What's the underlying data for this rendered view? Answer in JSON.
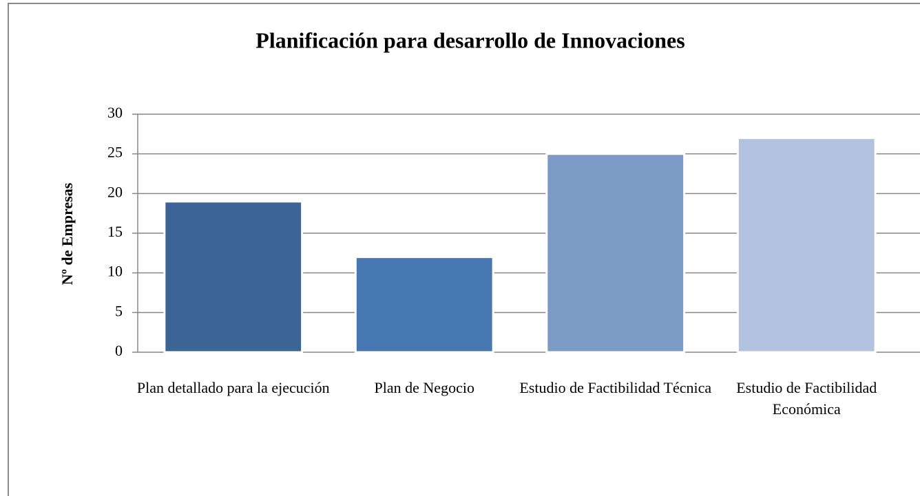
{
  "chart_data": {
    "type": "bar",
    "title": "Planificación para desarrollo de Innovaciones",
    "y_label": "Nº de Empresas",
    "categories": [
      "Plan detallado para la ejecución",
      "Plan de Negocio",
      "Estudio de Factibilidad Técnica",
      "Estudio de Factibilidad Económica"
    ],
    "values": [
      19,
      12,
      25,
      27
    ],
    "colors": [
      "#3c6494",
      "#4677b0",
      "#7b9ac6",
      "#b3c3df"
    ],
    "ylim": [
      0,
      30
    ],
    "yticks": [
      0,
      5,
      10,
      15,
      20,
      25,
      30
    ],
    "grid": true
  }
}
